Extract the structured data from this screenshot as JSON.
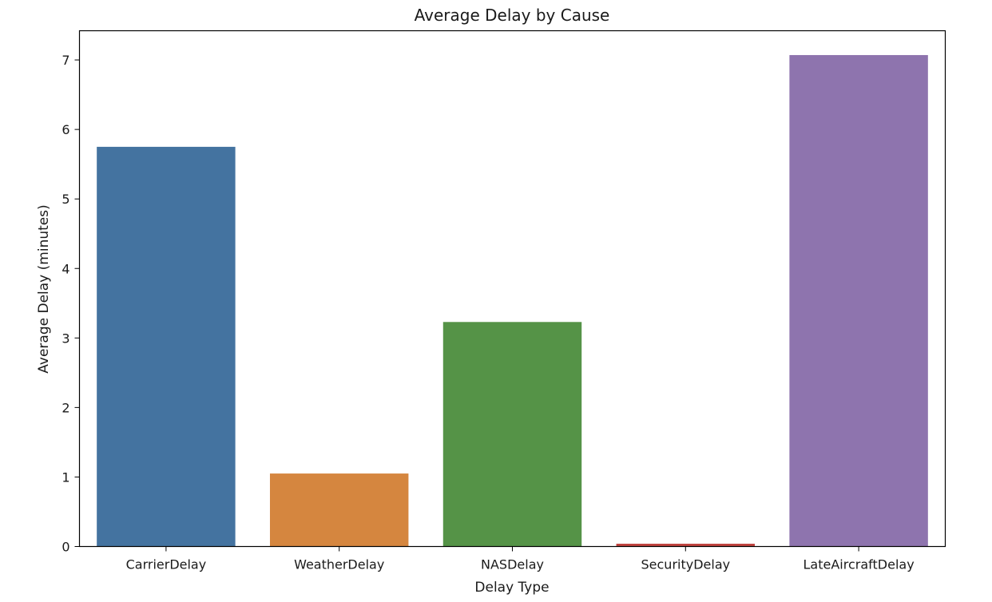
{
  "chart_data": {
    "type": "bar",
    "title": "Average Delay by Cause",
    "xlabel": "Delay Type",
    "ylabel": "Average Delay (minutes)",
    "categories": [
      "CarrierDelay",
      "WeatherDelay",
      "NASDelay",
      "SecurityDelay",
      "LateAircraftDelay"
    ],
    "values": [
      5.75,
      1.05,
      3.23,
      0.04,
      7.07
    ],
    "colors": [
      "#4473a0",
      "#d5863f",
      "#559347",
      "#c0443f",
      "#8e74ae"
    ],
    "ylim": [
      0,
      7.42
    ],
    "yticks": [
      0,
      1,
      2,
      3,
      4,
      5,
      6,
      7
    ],
    "grid": false,
    "legend": "none"
  }
}
